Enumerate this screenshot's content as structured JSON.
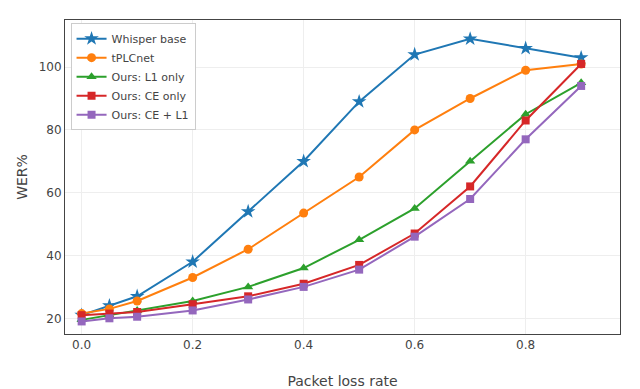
{
  "chart_data": {
    "type": "line",
    "x_label": "Packet loss rate",
    "y_label": "WER%",
    "x": [
      0.0,
      0.05,
      0.1,
      0.2,
      0.3,
      0.4,
      0.5,
      0.6,
      0.7,
      0.8,
      0.9
    ],
    "series": [
      {
        "name": "Whisper base",
        "color": "#1f77b4",
        "marker": "star",
        "values": [
          21.0,
          24.0,
          27.0,
          38.0,
          54.0,
          70.0,
          89.0,
          104.0,
          109.0,
          106.0,
          103.0
        ]
      },
      {
        "name": "tPLCnet",
        "color": "#ff7f0e",
        "marker": "circle",
        "values": [
          21.5,
          23.0,
          25.5,
          33.0,
          42.0,
          53.5,
          65.0,
          80.0,
          90.0,
          99.0,
          101.0
        ]
      },
      {
        "name": "Ours: L1 only",
        "color": "#2ca02c",
        "marker": "triangle-up",
        "values": [
          19.5,
          21.0,
          22.5,
          25.5,
          30.0,
          36.0,
          45.0,
          55.0,
          70.0,
          85.0,
          95.0
        ]
      },
      {
        "name": "Ours: CE only",
        "color": "#d62728",
        "marker": "square",
        "values": [
          21.0,
          21.5,
          22.0,
          24.5,
          27.0,
          31.0,
          37.0,
          47.0,
          62.0,
          83.0,
          101.0
        ]
      },
      {
        "name": "Ours: CE + L1",
        "color": "#9467bd",
        "marker": "square",
        "values": [
          19.0,
          20.0,
          20.5,
          22.5,
          26.0,
          30.0,
          35.5,
          46.0,
          58.0,
          77.0,
          94.0
        ]
      }
    ],
    "xlim": [
      -0.03,
      0.97
    ],
    "ylim": [
      15,
      115
    ],
    "xticks": [
      {
        "value": 0.0,
        "label": "0.0"
      },
      0.2,
      0.4,
      0.6,
      0.8
    ],
    "yticks": [
      20,
      40,
      60,
      80,
      100
    ],
    "grid": true,
    "legend": "upper left"
  }
}
